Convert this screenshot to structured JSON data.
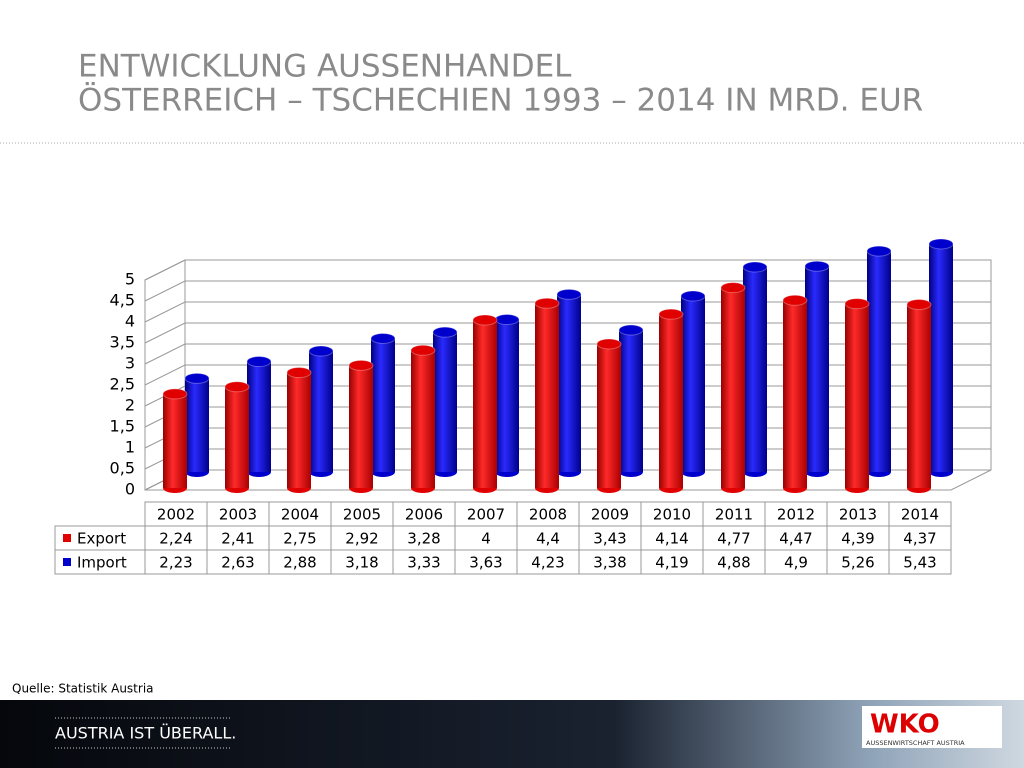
{
  "title_lines": [
    "ENTWICKLUNG AUSSENHANDEL",
    "ÖSTERREICH – TSCHECHIEN 1993 – 2014 IN MRD. EUR"
  ],
  "source": "Quelle: Statistik Austria",
  "footer": {
    "slogan": "AUSTRIA IST ÜBERALL.",
    "logo": "WKO",
    "logo_subtitle": "AUSSENWIRTSCHAFT AUSTRIA"
  },
  "chart_data": {
    "type": "bar3d",
    "categories": [
      "2002",
      "2003",
      "2004",
      "2005",
      "2006",
      "2007",
      "2008",
      "2009",
      "2010",
      "2011",
      "2012",
      "2013",
      "2014"
    ],
    "series": [
      {
        "name": "Export",
        "color": "#e00000",
        "values": [
          2.24,
          2.41,
          2.75,
          2.92,
          3.28,
          4,
          4.4,
          3.43,
          4.14,
          4.77,
          4.47,
          4.39,
          4.37
        ],
        "value_labels": [
          "2,24",
          "2,41",
          "2,75",
          "2,92",
          "3,28",
          "4",
          "4,4",
          "3,43",
          "4,14",
          "4,77",
          "4,47",
          "4,39",
          "4,37"
        ]
      },
      {
        "name": "Import",
        "color": "#0000cc",
        "values": [
          2.23,
          2.63,
          2.88,
          3.18,
          3.33,
          3.63,
          4.23,
          3.38,
          4.19,
          4.88,
          4.9,
          5.26,
          5.43
        ],
        "value_labels": [
          "2,23",
          "2,63",
          "2,88",
          "3,18",
          "3,33",
          "3,63",
          "4,23",
          "3,38",
          "4,19",
          "4,88",
          "4,9",
          "5,26",
          "5,43"
        ]
      }
    ],
    "ylim": [
      0,
      5
    ],
    "yticks": [
      0,
      {
        "value": 0.5,
        "label": "0,5"
      },
      1,
      {
        "value": 1.5,
        "label": "1,5"
      },
      2,
      {
        "value": 2.5,
        "label": "2,5"
      },
      3,
      {
        "value": 3.5,
        "label": "3,5"
      },
      4,
      {
        "value": 4.5,
        "label": "4,5"
      },
      5
    ],
    "grid": true
  }
}
